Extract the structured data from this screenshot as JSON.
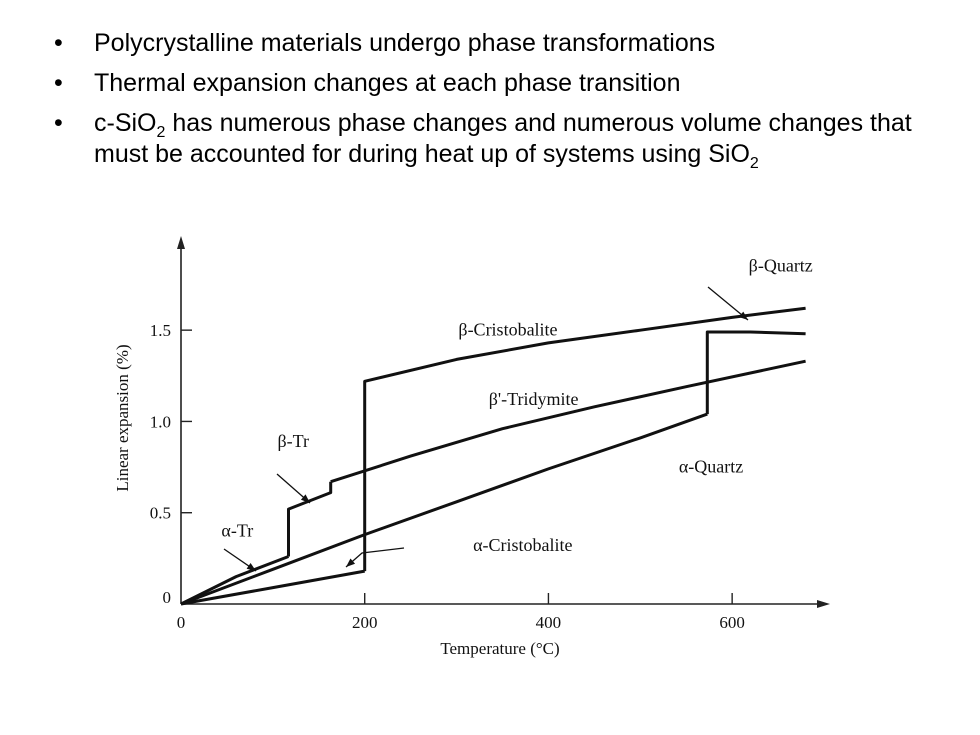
{
  "bullets": {
    "marker": "•",
    "b1": "Polycrystalline materials undergo phase transformations",
    "b2": "Thermal expansion changes at each phase transition",
    "b3_pre": "c-SiO",
    "b3_sub": "2",
    "b3_mid": " has numerous phase changes and numerous volume changes that must be accounted for during heat up of systems using SiO",
    "b3_sub2": "2"
  },
  "chart_data": {
    "type": "line",
    "xlabel": "Temperature (°C)",
    "ylabel": "Linear expansion (%)",
    "xlim": [
      0,
      700
    ],
    "ylim": [
      0,
      1.95
    ],
    "x_ticks": [
      0,
      200,
      400,
      600
    ],
    "x_tick_labels": [
      "0",
      "200",
      "400",
      "600"
    ],
    "y_ticks": [
      0,
      0.5,
      1.0,
      1.5
    ],
    "y_tick_labels": [
      "0",
      "0.5",
      "1.0",
      "1.5"
    ],
    "grid": false,
    "legend": "none",
    "series": [
      {
        "name": "α-Quartz",
        "x": [
          0,
          100,
          200,
          300,
          400,
          500,
          573
        ],
        "y": [
          0,
          0.19,
          0.38,
          0.56,
          0.74,
          0.91,
          1.04
        ]
      },
      {
        "name": "β-Quartz",
        "x": [
          573,
          573,
          620,
          680
        ],
        "y": [
          1.04,
          1.49,
          1.49,
          1.48
        ]
      },
      {
        "name": "α-Cristobalite",
        "x": [
          0,
          100,
          200
        ],
        "y": [
          0,
          0.09,
          0.18
        ]
      },
      {
        "name": "β-Cristobalite",
        "x": [
          200,
          200,
          300,
          400,
          500,
          600,
          680
        ],
        "y": [
          0.18,
          1.22,
          1.34,
          1.43,
          1.5,
          1.57,
          1.62
        ]
      },
      {
        "name": "α-Tr",
        "x": [
          0,
          60,
          117
        ],
        "y": [
          0,
          0.15,
          0.26
        ]
      },
      {
        "name": "β-Tr",
        "x": [
          117,
          117,
          163,
          163
        ],
        "y": [
          0.26,
          0.52,
          0.61,
          0.67
        ]
      },
      {
        "name": "β'-Tridymite",
        "x": [
          163,
          250,
          350,
          450,
          550,
          680
        ],
        "y": [
          0.67,
          0.81,
          0.96,
          1.08,
          1.19,
          1.33
        ]
      }
    ],
    "annotations": [
      {
        "text": "β-Quartz",
        "x": 618,
        "y": 1.82
      },
      {
        "text": "β-Cristobalite",
        "x": 302,
        "y": 1.47
      },
      {
        "text": "β'-Tridymite",
        "x": 335,
        "y": 1.09
      },
      {
        "text": "β-Tr",
        "x": 105,
        "y": 0.86
      },
      {
        "text": "α-Quartz",
        "x": 542,
        "y": 0.72
      },
      {
        "text": "α-Tr",
        "x": 44,
        "y": 0.37
      },
      {
        "text": "α-Cristobalite",
        "x": 318,
        "y": 0.29
      }
    ]
  }
}
